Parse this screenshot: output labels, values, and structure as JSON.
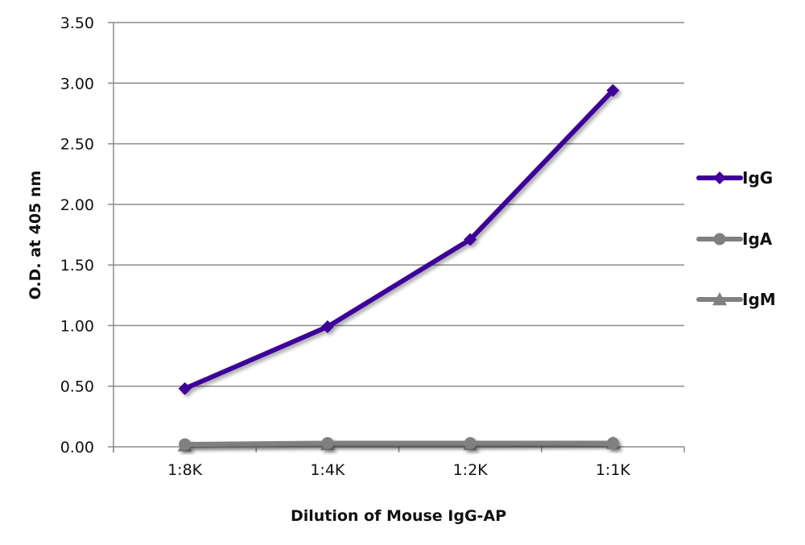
{
  "chart_data": {
    "type": "line",
    "title": "",
    "xlabel": "Dilution of Mouse IgG-AP",
    "ylabel": "O.D. at 405 nm",
    "categories": [
      "1:8K",
      "1:4K",
      "1:2K",
      "1:1K"
    ],
    "ylim": [
      0,
      3.5
    ],
    "yticks": [
      "0.00",
      "0.50",
      "1.00",
      "1.50",
      "2.00",
      "2.50",
      "3.00",
      "3.50"
    ],
    "grid": true,
    "legend_position": "right",
    "series": [
      {
        "name": "IgG",
        "values": [
          0.48,
          0.99,
          1.71,
          2.94
        ],
        "color": "#3d0099",
        "marker": "diamond"
      },
      {
        "name": "IgA",
        "values": [
          0.02,
          0.03,
          0.03,
          0.03
        ],
        "color": "#808080",
        "marker": "circle"
      },
      {
        "name": "IgM",
        "values": [
          0.01,
          0.02,
          0.02,
          0.03
        ],
        "color": "#808080",
        "marker": "triangle"
      }
    ]
  }
}
